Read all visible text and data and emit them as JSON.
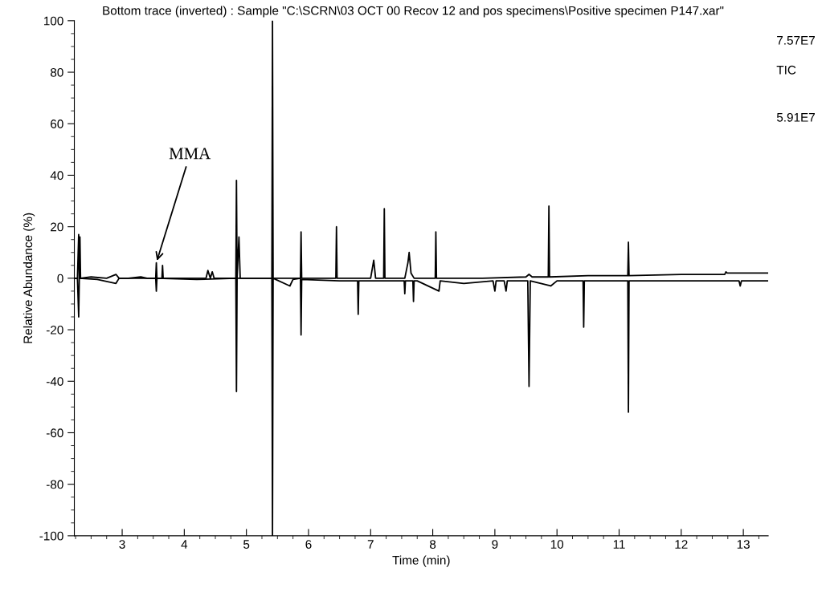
{
  "chart_data": {
    "type": "line",
    "title": "Bottom trace (inverted) : Sample \"C:\\SCRN\\03 OCT 00 Recov 12 and pos specimens\\Positive specimen P147.xar\"",
    "xlabel": "Time (min)",
    "ylabel": "Relative Abundance (%)",
    "xlim": [
      2.23,
      13.4
    ],
    "xticks": [
      3,
      4,
      5,
      6,
      7,
      8,
      9,
      10,
      11,
      12,
      13
    ],
    "ylim": [
      -100,
      100
    ],
    "yticks": [
      -100,
      -80,
      -60,
      -40,
      -20,
      0,
      20,
      40,
      60,
      80,
      100
    ],
    "grid": false,
    "legend": false,
    "marker": "none",
    "line_style": "solid",
    "annotations": [
      {
        "text": "MMA",
        "x": 3.55,
        "y": 6
      },
      "7.57E7",
      "TIC",
      "5.91E7"
    ],
    "series": [
      {
        "color": "#000000",
        "x": [
          2.23,
          2.28,
          2.3,
          2.31,
          2.32,
          2.33,
          2.5,
          2.75,
          2.9,
          2.95,
          3.1,
          3.3,
          3.4,
          3.54,
          3.55,
          3.56,
          3.64,
          3.65,
          3.66,
          4.0,
          4.35,
          4.38,
          4.42,
          4.45,
          4.48,
          4.83,
          4.84,
          4.85,
          4.88,
          4.9,
          5.41,
          5.42,
          5.43,
          5.6,
          5.87,
          5.88,
          5.89,
          6.2,
          6.44,
          6.45,
          6.46,
          7.0,
          7.05,
          7.08,
          7.21,
          7.22,
          7.23,
          7.55,
          7.6,
          7.62,
          7.65,
          7.7,
          8.04,
          8.05,
          8.06,
          8.8,
          9.5,
          9.55,
          9.6,
          9.86,
          9.87,
          9.88,
          10.5,
          11.14,
          11.15,
          11.16,
          12.0,
          12.7,
          12.72,
          12.74,
          13.4
        ],
        "values": [
          0,
          0,
          17,
          0,
          16,
          0,
          0.5,
          0,
          1.5,
          0,
          0,
          0.5,
          0,
          0,
          6,
          0,
          0,
          5,
          0,
          0,
          0,
          3,
          0,
          2.5,
          0,
          0,
          38,
          0,
          16,
          0,
          0,
          100,
          0,
          0,
          0,
          18,
          0,
          0,
          0,
          20,
          0,
          0,
          7,
          0,
          0,
          27,
          0,
          0,
          6,
          10,
          2,
          0,
          0,
          18,
          0,
          0,
          0.5,
          1.5,
          0.5,
          0.5,
          28,
          0.5,
          1,
          1,
          14,
          1,
          1.5,
          1.5,
          2.5,
          2,
          2
        ]
      },
      {
        "color": "#000000",
        "x": [
          2.23,
          2.28,
          2.3,
          2.31,
          2.6,
          2.9,
          2.95,
          3.54,
          3.55,
          3.56,
          4.2,
          4.83,
          4.84,
          4.85,
          5.41,
          5.42,
          5.43,
          5.7,
          5.75,
          5.87,
          5.88,
          5.89,
          6.5,
          6.79,
          6.8,
          6.81,
          7.0,
          7.54,
          7.55,
          7.56,
          7.68,
          7.69,
          7.7,
          7.75,
          8.1,
          8.12,
          8.5,
          8.97,
          9.0,
          9.02,
          9.15,
          9.18,
          9.2,
          9.53,
          9.55,
          9.57,
          9.9,
          10.0,
          10.42,
          10.43,
          10.44,
          10.8,
          11.14,
          11.15,
          11.16,
          12.0,
          12.93,
          12.95,
          12.97,
          13.4
        ],
        "values": [
          0,
          0,
          -15,
          0,
          -0.5,
          -2,
          0,
          0,
          -5,
          0,
          -0.5,
          0,
          -44,
          0,
          0,
          -100,
          0,
          -3,
          -0.5,
          0,
          -22,
          -0.5,
          -1,
          -1,
          -14,
          -1,
          -1,
          -1,
          -6,
          -1,
          -1,
          -9,
          -1,
          -1,
          -5,
          -1,
          -2,
          -1,
          -5,
          -1,
          -1,
          -5,
          -1,
          -1,
          -42,
          -1,
          -3,
          -1,
          -1,
          -19,
          -1,
          -1,
          -1,
          -52,
          -1,
          -1,
          -1,
          -3,
          -1,
          -1
        ]
      }
    ]
  }
}
